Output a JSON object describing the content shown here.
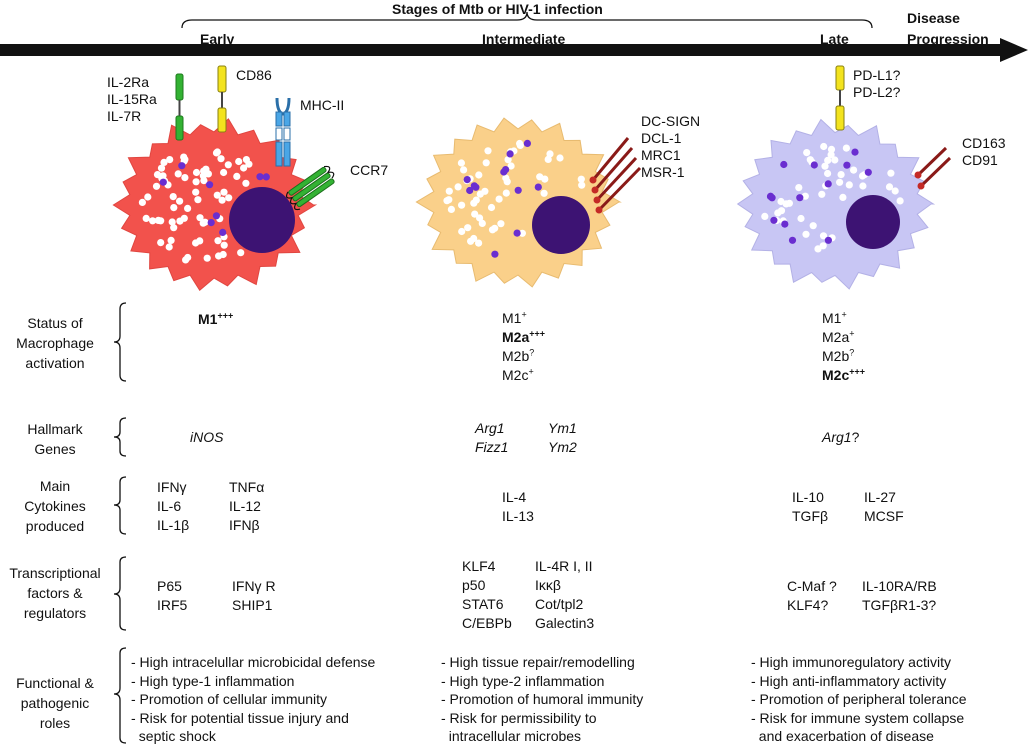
{
  "header": {
    "title": "Stages of Mtb or HIV-1 infection",
    "progression_line1": "Disease",
    "progression_line2": "Progression",
    "stages": [
      "Early",
      "Intermediate",
      "Late"
    ]
  },
  "colors": {
    "early_cell": "#f2524c",
    "intermediate_cell": "#fad08a",
    "late_cell": "#c8c6f4",
    "nucleus": "#3d1373",
    "purple_granule": "#6a2ed0",
    "receptor_green": "#33b233",
    "receptor_yellow": "#f3e31e",
    "receptor_blue": "#4aa6e6",
    "receptor_red": "#c42a26"
  },
  "cells": {
    "early": {
      "receptors": [
        "IL-2Ra",
        "IL-15Ra",
        "IL-7R"
      ],
      "cd86": "CD86",
      "mhc": "MHC-II",
      "ccr7": "CCR7"
    },
    "intermediate": {
      "receptors": [
        "DC-SIGN",
        "DCL-1",
        "MRC1",
        "MSR-1"
      ]
    },
    "late": {
      "pdl": [
        "PD-L1?",
        "PD-L2?"
      ],
      "cd": [
        "CD163",
        "CD91"
      ]
    }
  },
  "rows": {
    "status": {
      "label": [
        "Status of",
        "Macrophage",
        "activation"
      ],
      "early": [
        {
          "t": "M1",
          "s": "+++",
          "b": true
        }
      ],
      "intermediate": [
        {
          "t": "M1",
          "s": "+",
          "b": false
        },
        {
          "t": "M2a",
          "s": "+++",
          "b": true
        },
        {
          "t": "M2b",
          "s": "?",
          "b": false
        },
        {
          "t": "M2c",
          "s": "+",
          "b": false
        }
      ],
      "late": [
        {
          "t": "M1",
          "s": "+",
          "b": false
        },
        {
          "t": "M2a",
          "s": "+",
          "b": false
        },
        {
          "t": "M2b",
          "s": "?",
          "b": false
        },
        {
          "t": "M2c",
          "s": "+++",
          "b": true
        }
      ]
    },
    "genes": {
      "label": [
        "Hallmark",
        "Genes"
      ],
      "early": "iNOS",
      "intermediate": [
        [
          "Arg1",
          "Ym1"
        ],
        [
          "Fizz1",
          "Ym2"
        ]
      ],
      "late_italic": "Arg1",
      "late_suffix": "?"
    },
    "cytokines": {
      "label": [
        "Main",
        "Cytokines",
        "produced"
      ],
      "early": [
        [
          "IFNγ",
          "TNFα"
        ],
        [
          "IL-6",
          "IL-12"
        ],
        [
          "IL-1β",
          "IFNβ"
        ]
      ],
      "intermediate": [
        "IL-4",
        "IL-13"
      ],
      "late": [
        [
          "IL-10",
          "IL-27"
        ],
        [
          "TGFβ",
          "MCSF"
        ]
      ]
    },
    "transcription": {
      "label": [
        "Transcriptional",
        "factors  &",
        "regulators"
      ],
      "early": [
        [
          "P65",
          "IFNγ R"
        ],
        [
          "IRF5",
          "SHIP1"
        ]
      ],
      "intermediate": [
        [
          "KLF4",
          "IL-4R I, II"
        ],
        [
          "p50",
          "Iκκβ"
        ],
        [
          "STAT6",
          "Cot/tpl2"
        ],
        [
          "C/EBPb",
          "Galectin3"
        ]
      ],
      "late": [
        [
          "C-Maf ?",
          "IL-10RA/RB"
        ],
        [
          "KLF4?",
          "TGFβR1-3?"
        ]
      ]
    },
    "roles": {
      "label": [
        "Functional &",
        "pathogenic",
        "roles"
      ],
      "early": [
        "- High intracelullar microbicidal defense",
        "- High type-1 inflammation",
        "- Promotion of cellular immunity",
        "- Risk for potential tissue injury and",
        "  septic shock"
      ],
      "intermediate": [
        "- High tissue repair/remodelling",
        "- High type-2 inflammation",
        "- Promotion of humoral immunity",
        "- Risk for permissibility to",
        "  intracellular microbes"
      ],
      "late": [
        "- High immunoregulatory activity",
        "- High anti-inflammatory activity",
        "- Promotion of peripheral tolerance",
        "- Risk for immune system collapse",
        "  and exacerbation of disease"
      ]
    }
  }
}
